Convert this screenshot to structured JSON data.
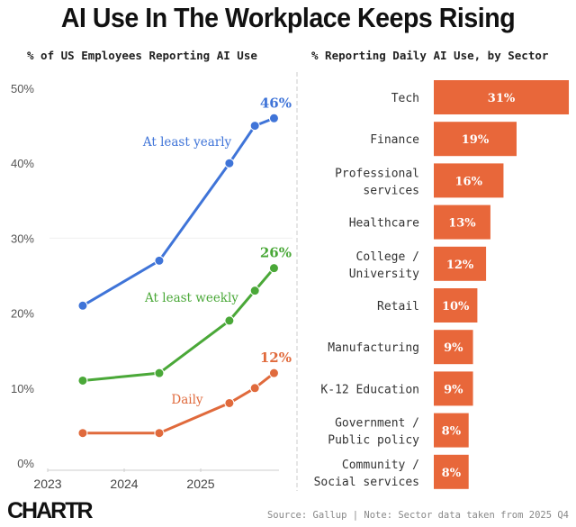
{
  "title": "AI Use In The Workplace Keeps Rising",
  "logo": "CHARTR",
  "source": "Source: Gallup | Note: Sector data taken from 2025 Q4",
  "chart_data": [
    {
      "type": "line",
      "title": "% of US Employees Reporting AI Use",
      "x": [
        "2023-06",
        "2024-06",
        "2025-05",
        "2025-09",
        "2025-12"
      ],
      "xticks": [
        "2023",
        "2024",
        "2025"
      ],
      "yticks": [
        "0%",
        "10%",
        "20%",
        "30%",
        "40%",
        "50%"
      ],
      "ylim": [
        0,
        50
      ],
      "grid": false,
      "series": [
        {
          "name": "At least yearly",
          "color": "#3f74d8",
          "values": [
            21,
            27,
            40,
            45,
            46
          ],
          "end_label": "46%"
        },
        {
          "name": "At least weekly",
          "color": "#4aa838",
          "values": [
            11,
            12,
            19,
            23,
            26
          ],
          "end_label": "26%"
        },
        {
          "name": "Daily",
          "color": "#e06a3c",
          "values": [
            4,
            4,
            8,
            10,
            12
          ],
          "end_label": "12%"
        }
      ]
    },
    {
      "type": "bar",
      "orientation": "horizontal",
      "title": "% Reporting Daily AI Use, by Sector",
      "color": "#e8673a",
      "categories": [
        [
          "Tech"
        ],
        [
          "Finance"
        ],
        [
          "Professional",
          "services"
        ],
        [
          "Healthcare"
        ],
        [
          "College /",
          "University"
        ],
        [
          "Retail"
        ],
        [
          "Manufacturing"
        ],
        [
          "K-12 Education"
        ],
        [
          "Government /",
          "Public policy"
        ],
        [
          "Community /",
          "Social services"
        ]
      ],
      "values": [
        31,
        19,
        16,
        13,
        12,
        10,
        9,
        9,
        8,
        8
      ],
      "labels": [
        "31%",
        "19%",
        "16%",
        "13%",
        "12%",
        "10%",
        "9%",
        "9%",
        "8%",
        "8%"
      ]
    }
  ]
}
